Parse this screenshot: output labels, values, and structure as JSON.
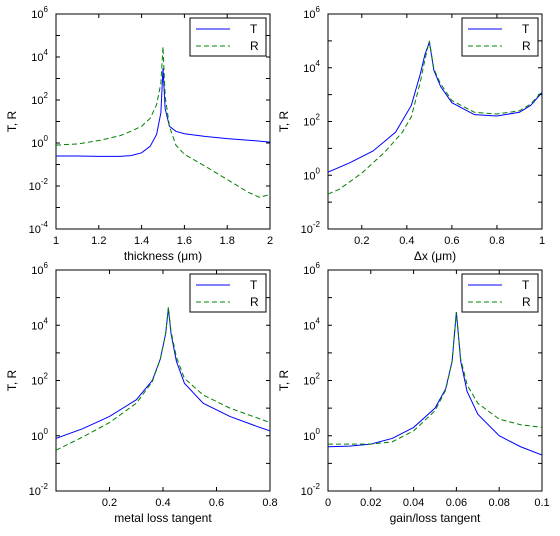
{
  "chart_data": [
    {
      "type": "line",
      "xlabel": "thickness (μm)",
      "ylabel": "T, R",
      "xlim": [
        1,
        2
      ],
      "xticks": [
        "1",
        "1.2",
        "1.4",
        "1.6",
        "1.8",
        "2"
      ],
      "xtick_values": [
        1,
        1.2,
        1.4,
        1.6,
        1.8,
        2
      ],
      "ylim_exp": [
        -4,
        6
      ],
      "ytick_exps": [
        -4,
        -2,
        0,
        2,
        4,
        6
      ],
      "yscale": "log",
      "legend_position": "top-right",
      "series": [
        {
          "name": "T",
          "style": "solid",
          "color": "#0000ff",
          "x": [
            1.0,
            1.1,
            1.2,
            1.3,
            1.35,
            1.4,
            1.44,
            1.47,
            1.49,
            1.5,
            1.51,
            1.53,
            1.56,
            1.6,
            1.7,
            1.8,
            1.9,
            2.0
          ],
          "y": [
            0.25,
            0.25,
            0.24,
            0.24,
            0.26,
            0.35,
            0.7,
            2.5,
            25,
            3000,
            40,
            6,
            3.5,
            2.7,
            2.0,
            1.6,
            1.35,
            1.1
          ]
        },
        {
          "name": "R",
          "style": "dashed",
          "color": "#008000",
          "x": [
            1.0,
            1.1,
            1.2,
            1.3,
            1.35,
            1.4,
            1.44,
            1.47,
            1.49,
            1.5,
            1.51,
            1.53,
            1.56,
            1.6,
            1.7,
            1.8,
            1.9,
            1.95,
            2.0
          ],
          "y": [
            0.8,
            0.9,
            1.3,
            2.2,
            3.5,
            6,
            14,
            60,
            600,
            30000,
            150,
            6,
            0.8,
            0.3,
            0.08,
            0.02,
            0.005,
            0.003,
            0.004
          ]
        }
      ]
    },
    {
      "type": "line",
      "xlabel": "Δx (μm)",
      "ylabel": "T, R",
      "xlim": [
        0.05,
        1
      ],
      "xticks": [
        "0.2",
        "0.4",
        "0.6",
        "0.8",
        "1"
      ],
      "xtick_values": [
        0.2,
        0.4,
        0.6,
        0.8,
        1.0
      ],
      "ylim_exp": [
        -2,
        6
      ],
      "ytick_exps": [
        -2,
        0,
        2,
        4,
        6
      ],
      "yscale": "log",
      "legend_position": "top-right",
      "series": [
        {
          "name": "T",
          "style": "solid",
          "color": "#0000ff",
          "x": [
            0.05,
            0.15,
            0.25,
            0.35,
            0.42,
            0.46,
            0.48,
            0.5,
            0.52,
            0.55,
            0.6,
            0.7,
            0.8,
            0.9,
            0.95,
            1.0
          ],
          "y": [
            1.3,
            3,
            8,
            40,
            400,
            6000,
            30000,
            90000,
            8000,
            2000,
            500,
            180,
            160,
            220,
            400,
            1200
          ]
        },
        {
          "name": "R",
          "style": "dashed",
          "color": "#008000",
          "x": [
            0.05,
            0.1,
            0.2,
            0.3,
            0.38,
            0.42,
            0.46,
            0.48,
            0.5,
            0.52,
            0.55,
            0.6,
            0.7,
            0.8,
            0.9,
            0.95,
            1.0
          ],
          "y": [
            0.2,
            0.3,
            1.2,
            7,
            40,
            150,
            3000,
            20000,
            100000,
            9000,
            2500,
            600,
            220,
            190,
            250,
            450,
            1300
          ]
        }
      ]
    },
    {
      "type": "line",
      "xlabel": "metal loss tangent",
      "ylabel": "T, R",
      "xlim": [
        0,
        0.8
      ],
      "xticks": [
        "0.2",
        "0.4",
        "0.6",
        "0.8"
      ],
      "xtick_values": [
        0.2,
        0.4,
        0.6,
        0.8
      ],
      "ylim_exp": [
        -2,
        6
      ],
      "ytick_exps": [
        -2,
        0,
        2,
        4,
        6
      ],
      "yscale": "log",
      "legend_position": "top-right",
      "series": [
        {
          "name": "T",
          "style": "solid",
          "color": "#0000ff",
          "x": [
            0.0,
            0.1,
            0.2,
            0.3,
            0.36,
            0.39,
            0.41,
            0.42,
            0.43,
            0.45,
            0.48,
            0.55,
            0.65,
            0.75,
            0.8
          ],
          "y": [
            0.8,
            1.8,
            5,
            20,
            100,
            600,
            5000,
            40000,
            5000,
            500,
            80,
            15,
            5,
            2.2,
            1.5
          ]
        },
        {
          "name": "R",
          "style": "dashed",
          "color": "#008000",
          "x": [
            0.0,
            0.1,
            0.2,
            0.3,
            0.36,
            0.39,
            0.41,
            0.42,
            0.43,
            0.45,
            0.48,
            0.55,
            0.65,
            0.75,
            0.8
          ],
          "y": [
            0.3,
            0.9,
            3,
            15,
            90,
            600,
            5000,
            45000,
            6000,
            700,
            120,
            30,
            10,
            4.5,
            3
          ]
        }
      ]
    },
    {
      "type": "line",
      "xlabel": "gain/loss tangent",
      "ylabel": "T, R",
      "xlim": [
        0,
        0.1
      ],
      "xticks": [
        "0",
        "0.02",
        "0.04",
        "0.06",
        "0.08",
        "0.1"
      ],
      "xtick_values": [
        0,
        0.02,
        0.04,
        0.06,
        0.08,
        0.1
      ],
      "ylim_exp": [
        -2,
        6
      ],
      "ytick_exps": [
        -2,
        0,
        2,
        4,
        6
      ],
      "yscale": "log",
      "legend_position": "top-right",
      "series": [
        {
          "name": "T",
          "style": "solid",
          "color": "#0000ff",
          "x": [
            0.0,
            0.01,
            0.02,
            0.03,
            0.04,
            0.05,
            0.055,
            0.058,
            0.06,
            0.062,
            0.065,
            0.07,
            0.08,
            0.09,
            0.1
          ],
          "y": [
            0.4,
            0.42,
            0.5,
            0.8,
            2,
            10,
            50,
            500,
            30000,
            500,
            40,
            6,
            1,
            0.4,
            0.2
          ]
        },
        {
          "name": "R",
          "style": "dashed",
          "color": "#008000",
          "x": [
            0.0,
            0.01,
            0.02,
            0.03,
            0.04,
            0.05,
            0.055,
            0.058,
            0.06,
            0.062,
            0.065,
            0.07,
            0.08,
            0.09,
            0.1
          ],
          "y": [
            0.5,
            0.5,
            0.5,
            0.6,
            1.5,
            8,
            45,
            500,
            30000,
            600,
            70,
            15,
            4,
            2.5,
            2
          ]
        }
      ]
    }
  ]
}
